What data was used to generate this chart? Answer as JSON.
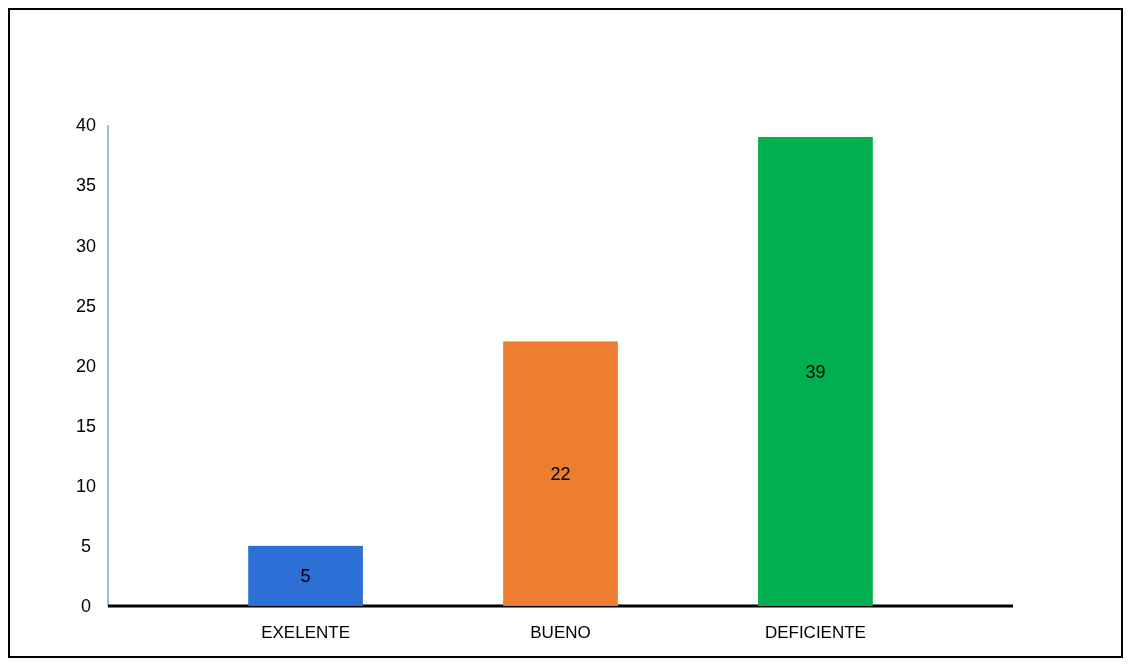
{
  "chart_data": {
    "type": "bar",
    "categories": [
      "EXELENTE",
      "BUENO",
      "DEFICIENTE"
    ],
    "values": [
      5,
      22,
      39
    ],
    "colors": [
      "#2e6fd6",
      "#ed7d31",
      "#00b050"
    ],
    "ylim": [
      0,
      40
    ],
    "yticks": [
      0,
      5,
      10,
      15,
      20,
      25,
      30,
      35,
      40
    ],
    "data_labels": true,
    "grid": false
  }
}
